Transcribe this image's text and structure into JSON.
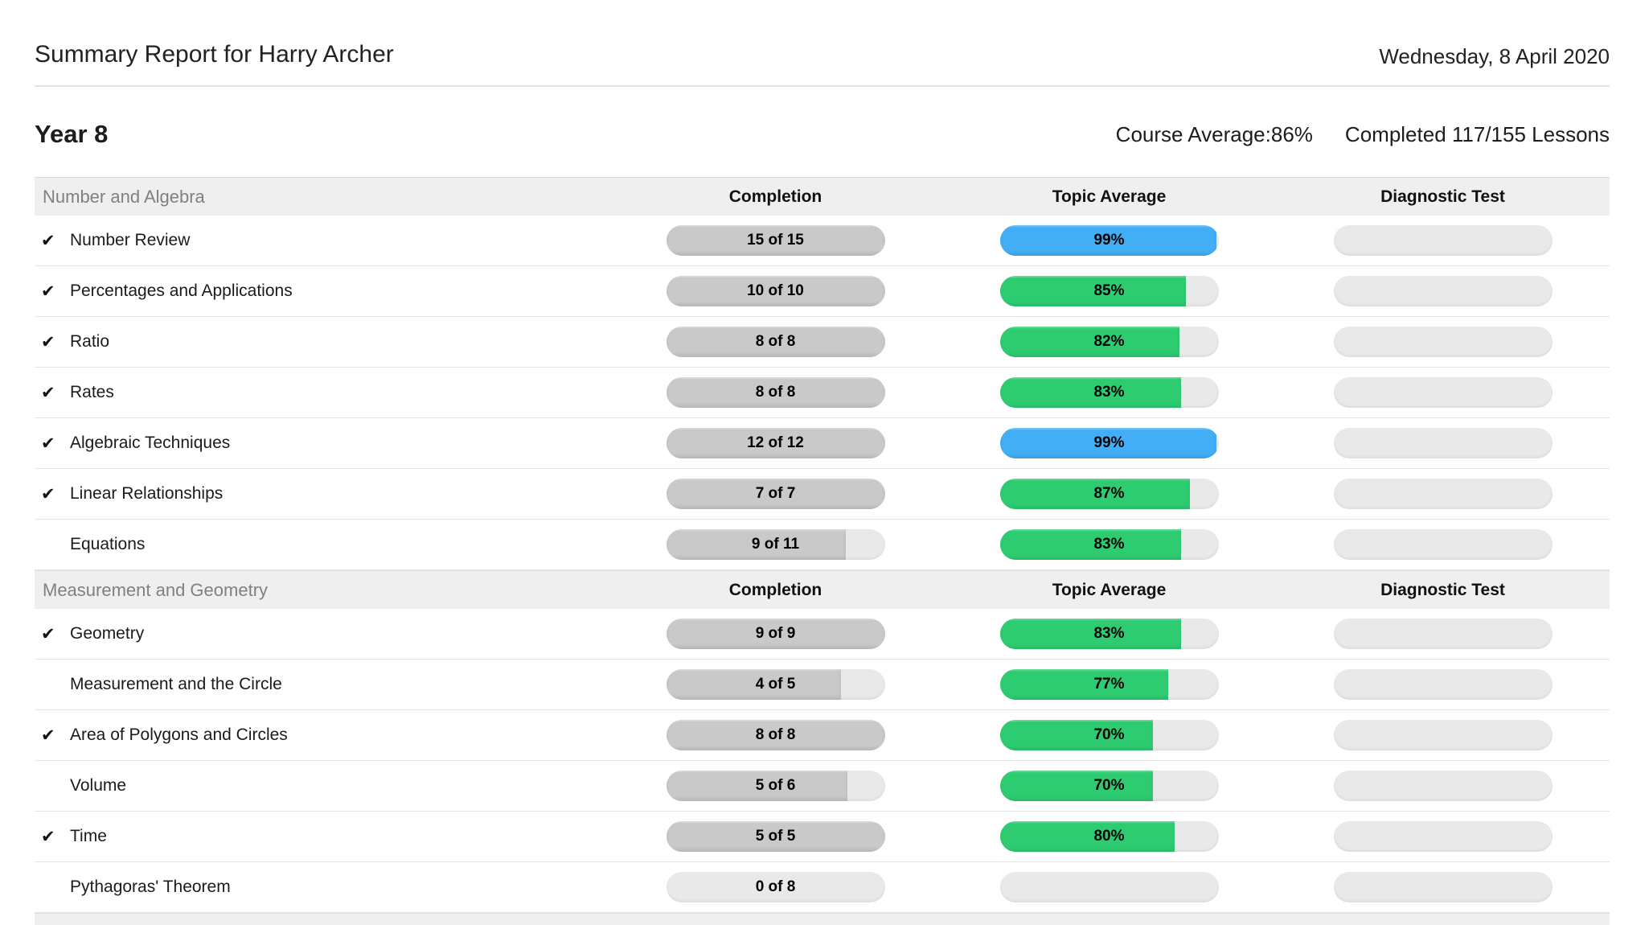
{
  "header": {
    "title": "Summary Report for Harry Archer",
    "date": "Wednesday, 8 April 2020"
  },
  "course": {
    "name": "Year 8",
    "average_label": "Course Average:86%",
    "completed_label": "Completed 117/155 Lessons"
  },
  "columns": {
    "completion": "Completion",
    "topic_average": "Topic Average",
    "diagnostic_test": "Diagnostic Test"
  },
  "check_icon": "✔",
  "colors": {
    "green": "#2ecc71",
    "blue": "#42aef5",
    "gray_fill": "#c9c9c9",
    "track": "#e9e9e9",
    "band_bg": "#efefef"
  },
  "sections": [
    {
      "name": "Number and Algebra",
      "rows": [
        {
          "topic": "Number Review",
          "completed": true,
          "completion_label": "15 of 15",
          "completion_pct": 100,
          "average_label": "99%",
          "average_pct": 99,
          "average_color": "blue"
        },
        {
          "topic": "Percentages and Applications",
          "completed": true,
          "completion_label": "10 of 10",
          "completion_pct": 100,
          "average_label": "85%",
          "average_pct": 85,
          "average_color": "green"
        },
        {
          "topic": "Ratio",
          "completed": true,
          "completion_label": "8 of 8",
          "completion_pct": 100,
          "average_label": "82%",
          "average_pct": 82,
          "average_color": "green"
        },
        {
          "topic": "Rates",
          "completed": true,
          "completion_label": "8 of 8",
          "completion_pct": 100,
          "average_label": "83%",
          "average_pct": 83,
          "average_color": "green"
        },
        {
          "topic": "Algebraic Techniques",
          "completed": true,
          "completion_label": "12 of 12",
          "completion_pct": 100,
          "average_label": "99%",
          "average_pct": 99,
          "average_color": "blue"
        },
        {
          "topic": "Linear Relationships",
          "completed": true,
          "completion_label": "7 of 7",
          "completion_pct": 100,
          "average_label": "87%",
          "average_pct": 87,
          "average_color": "green"
        },
        {
          "topic": "Equations",
          "completed": false,
          "completion_label": "9 of 11",
          "completion_pct": 82,
          "average_label": "83%",
          "average_pct": 83,
          "average_color": "green"
        }
      ]
    },
    {
      "name": "Measurement and Geometry",
      "rows": [
        {
          "topic": "Geometry",
          "completed": true,
          "completion_label": "9 of 9",
          "completion_pct": 100,
          "average_label": "83%",
          "average_pct": 83,
          "average_color": "green"
        },
        {
          "topic": "Measurement and the Circle",
          "completed": false,
          "completion_label": "4 of 5",
          "completion_pct": 80,
          "average_label": "77%",
          "average_pct": 77,
          "average_color": "green"
        },
        {
          "topic": "Area of Polygons and Circles",
          "completed": true,
          "completion_label": "8 of 8",
          "completion_pct": 100,
          "average_label": "70%",
          "average_pct": 70,
          "average_color": "green"
        },
        {
          "topic": "Volume",
          "completed": false,
          "completion_label": "5 of 6",
          "completion_pct": 83,
          "average_label": "70%",
          "average_pct": 70,
          "average_color": "green"
        },
        {
          "topic": "Time",
          "completed": true,
          "completion_label": "5 of 5",
          "completion_pct": 100,
          "average_label": "80%",
          "average_pct": 80,
          "average_color": "green"
        },
        {
          "topic": "Pythagoras' Theorem",
          "completed": false,
          "completion_label": "0 of 8",
          "completion_pct": 0,
          "average_label": "",
          "average_pct": 0,
          "average_color": "none"
        }
      ]
    }
  ]
}
